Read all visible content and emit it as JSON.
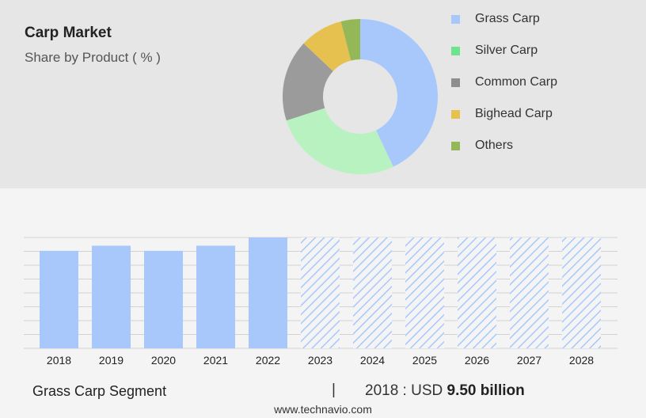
{
  "title": "Carp Market",
  "subtitle": "Share by Product ( % )",
  "legend": [
    {
      "label": "Grass Carp",
      "color": "#a8c8fc"
    },
    {
      "label": "Silver Carp",
      "color": "#6ee58c"
    },
    {
      "label": "Common Carp",
      "color": "#8e8e8e"
    },
    {
      "label": "Bighead Carp",
      "color": "#e6c14f"
    },
    {
      "label": "Others",
      "color": "#94b857"
    }
  ],
  "footer": {
    "segment": "Grass Carp Segment",
    "separator": "|",
    "value_prefix": "2018 : USD",
    "value_amount": "9.50 billion"
  },
  "website": "www.technavio.com",
  "chart_data": [
    {
      "type": "pie",
      "title": "Share by Product ( % )",
      "donut": true,
      "slices": [
        {
          "label": "Grass Carp",
          "value": 43,
          "color": "#a8c8fc"
        },
        {
          "label": "Silver Carp",
          "value": 27,
          "color": "#b8f2c0"
        },
        {
          "label": "Common Carp",
          "value": 17,
          "color": "#9b9b9b"
        },
        {
          "label": "Bighead Carp",
          "value": 9,
          "color": "#e6c14f"
        },
        {
          "label": "Others",
          "value": 4,
          "color": "#94b857"
        }
      ]
    },
    {
      "type": "bar",
      "categories": [
        "2018",
        "2019",
        "2020",
        "2021",
        "2022",
        "2023",
        "2024",
        "2025",
        "2026",
        "2027",
        "2028"
      ],
      "values": [
        9.5,
        10.0,
        9.5,
        10.0,
        10.8,
        10.8,
        10.8,
        10.8,
        10.8,
        10.8,
        10.8
      ],
      "forecast_from": "2023",
      "color": "#a8c8fc",
      "ylim": [
        0,
        10.8
      ],
      "grid": true
    }
  ]
}
